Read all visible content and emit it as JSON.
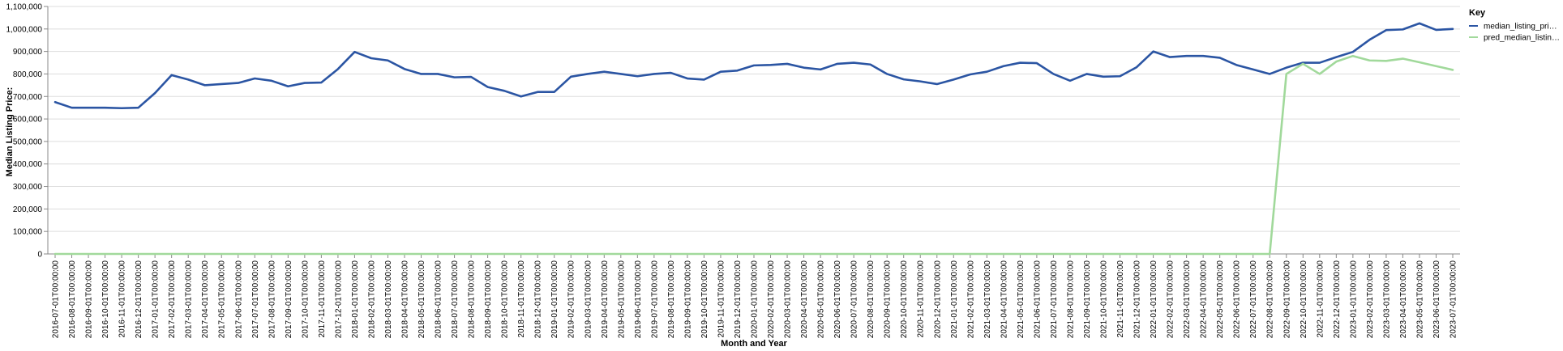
{
  "chart_data": {
    "type": "line",
    "xlabel": "Month and Year",
    "ylabel": "Median Listing Price:",
    "ylim": [
      0,
      1100000
    ],
    "yticks": [
      0,
      100000,
      200000,
      300000,
      400000,
      500000,
      600000,
      700000,
      800000,
      900000,
      1000000,
      1100000
    ],
    "ytick_labels": [
      "0",
      "100,000",
      "200,000",
      "300,000",
      "400,000",
      "500,000",
      "600,000",
      "700,000",
      "800,000",
      "900,000",
      "1,000,000",
      "1,100,000"
    ],
    "grid": true,
    "legend": {
      "title": "Key",
      "placement": "right"
    },
    "x": [
      "2016-07-01T00:00:00",
      "2016-08-01T00:00:00",
      "2016-09-01T00:00:00",
      "2016-10-01T00:00:00",
      "2016-11-01T00:00:00",
      "2016-12-01T00:00:00",
      "2017-01-01T00:00:00",
      "2017-02-01T00:00:00",
      "2017-03-01T00:00:00",
      "2017-04-01T00:00:00",
      "2017-05-01T00:00:00",
      "2017-06-01T00:00:00",
      "2017-07-01T00:00:00",
      "2017-08-01T00:00:00",
      "2017-09-01T00:00:00",
      "2017-10-01T00:00:00",
      "2017-11-01T00:00:00",
      "2017-12-01T00:00:00",
      "2018-01-01T00:00:00",
      "2018-02-01T00:00:00",
      "2018-03-01T00:00:00",
      "2018-04-01T00:00:00",
      "2018-05-01T00:00:00",
      "2018-06-01T00:00:00",
      "2018-07-01T00:00:00",
      "2018-08-01T00:00:00",
      "2018-09-01T00:00:00",
      "2018-10-01T00:00:00",
      "2018-11-01T00:00:00",
      "2018-12-01T00:00:00",
      "2019-01-01T00:00:00",
      "2019-02-01T00:00:00",
      "2019-03-01T00:00:00",
      "2019-04-01T00:00:00",
      "2019-05-01T00:00:00",
      "2019-06-01T00:00:00",
      "2019-07-01T00:00:00",
      "2019-08-01T00:00:00",
      "2019-09-01T00:00:00",
      "2019-10-01T00:00:00",
      "2019-11-01T00:00:00",
      "2019-12-01T00:00:00",
      "2020-01-01T00:00:00",
      "2020-02-01T00:00:00",
      "2020-03-01T00:00:00",
      "2020-04-01T00:00:00",
      "2020-05-01T00:00:00",
      "2020-06-01T00:00:00",
      "2020-07-01T00:00:00",
      "2020-08-01T00:00:00",
      "2020-09-01T00:00:00",
      "2020-10-01T00:00:00",
      "2020-11-01T00:00:00",
      "2020-12-01T00:00:00",
      "2021-01-01T00:00:00",
      "2021-02-01T00:00:00",
      "2021-03-01T00:00:00",
      "2021-04-01T00:00:00",
      "2021-05-01T00:00:00",
      "2021-06-01T00:00:00",
      "2021-07-01T00:00:00",
      "2021-08-01T00:00:00",
      "2021-09-01T00:00:00",
      "2021-10-01T00:00:00",
      "2021-11-01T00:00:00",
      "2021-12-01T00:00:00",
      "2022-01-01T00:00:00",
      "2022-02-01T00:00:00",
      "2022-03-01T00:00:00",
      "2022-04-01T00:00:00",
      "2022-05-01T00:00:00",
      "2022-06-01T00:00:00",
      "2022-07-01T00:00:00",
      "2022-08-01T00:00:00",
      "2022-09-01T00:00:00",
      "2022-10-01T00:00:00",
      "2022-11-01T00:00:00",
      "2022-12-01T00:00:00",
      "2023-01-01T00:00:00",
      "2023-02-01T00:00:00",
      "2023-03-01T00:00:00",
      "2023-04-01T00:00:00",
      "2023-05-01T00:00:00",
      "2023-06-01T00:00:00",
      "2023-07-01T00:00:00"
    ],
    "series": [
      {
        "name": "median_listing_pri…",
        "color": "#2b55a3",
        "values": [
          675000,
          650000,
          650000,
          650000,
          648000,
          650000,
          715000,
          795000,
          775000,
          750000,
          755000,
          760000,
          780000,
          770000,
          745000,
          760000,
          762000,
          822000,
          898000,
          870000,
          860000,
          822000,
          800000,
          800000,
          785000,
          787000,
          742000,
          725000,
          700000,
          720000,
          720000,
          788000,
          800000,
          810000,
          800000,
          790000,
          800000,
          805000,
          780000,
          775000,
          810000,
          815000,
          838000,
          840000,
          845000,
          828000,
          820000,
          845000,
          850000,
          842000,
          800000,
          776000,
          767000,
          755000,
          775000,
          798000,
          810000,
          835000,
          850000,
          848000,
          800000,
          770000,
          800000,
          788000,
          790000,
          830000,
          900000,
          875000,
          880000,
          880000,
          872000,
          840000,
          820000,
          800000,
          828000,
          850000,
          850000,
          875000,
          898000,
          952000,
          995000,
          998000,
          1025000,
          996000,
          1000000
        ]
      },
      {
        "name": "pred_median_listin…",
        "color": "#a1d99b",
        "values": [
          0,
          0,
          0,
          0,
          0,
          0,
          0,
          0,
          0,
          0,
          0,
          0,
          0,
          0,
          0,
          0,
          0,
          0,
          0,
          0,
          0,
          0,
          0,
          0,
          0,
          0,
          0,
          0,
          0,
          0,
          0,
          0,
          0,
          0,
          0,
          0,
          0,
          0,
          0,
          0,
          0,
          0,
          0,
          0,
          0,
          0,
          0,
          0,
          0,
          0,
          0,
          0,
          0,
          0,
          0,
          0,
          0,
          0,
          0,
          0,
          0,
          0,
          0,
          0,
          0,
          0,
          0,
          0,
          0,
          0,
          0,
          0,
          0,
          0,
          800000,
          845000,
          800000,
          855000,
          880000,
          860000,
          858000,
          868000,
          852000,
          835000,
          818000
        ]
      }
    ]
  }
}
